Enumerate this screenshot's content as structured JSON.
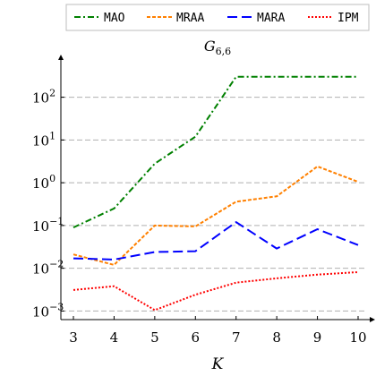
{
  "chart_data": {
    "type": "line",
    "title": "G",
    "title_sub": "6,6",
    "xlabel": "K",
    "ylabel": "",
    "x": [
      3,
      4,
      5,
      6,
      7,
      8,
      9,
      10
    ],
    "xlim": [
      2.9,
      10.1
    ],
    "ylim": [
      0.0006,
      900
    ],
    "yscale": "log",
    "xticks": [
      "3",
      "4",
      "5",
      "6",
      "7",
      "8",
      "9",
      "10"
    ],
    "yticks": [
      {
        "base": "10",
        "exp": "2",
        "value": 100
      },
      {
        "base": "10",
        "exp": "1",
        "value": 10
      },
      {
        "base": "10",
        "exp": "0",
        "value": 1
      },
      {
        "base": "10",
        "exp": "−1",
        "value": 0.1
      },
      {
        "base": "10",
        "exp": "−2",
        "value": 0.01
      },
      {
        "base": "10",
        "exp": "−3",
        "value": 0.001
      }
    ],
    "grid": "horizontal-dashed",
    "legend_position": "top",
    "series": [
      {
        "name": "MAO",
        "color": "#008000",
        "dash": "7,3,2,3",
        "values": [
          0.09,
          0.25,
          2.8,
          12,
          300,
          300,
          300,
          300
        ]
      },
      {
        "name": "MRAA",
        "color": "#ff8000",
        "dash": "4,2",
        "values": [
          0.021,
          0.012,
          0.1,
          0.095,
          0.36,
          0.48,
          2.4,
          1.05
        ]
      },
      {
        "name": "MARA",
        "color": "#0000ff",
        "dash": "11,5",
        "values": [
          0.017,
          0.016,
          0.024,
          0.025,
          0.12,
          0.029,
          0.082,
          0.035
        ]
      },
      {
        "name": "IPM",
        "color": "#ff0000",
        "dash": "2,2",
        "values": [
          0.0031,
          0.0038,
          0.00105,
          0.0024,
          0.0046,
          0.0058,
          0.0071,
          0.0081
        ]
      }
    ]
  }
}
